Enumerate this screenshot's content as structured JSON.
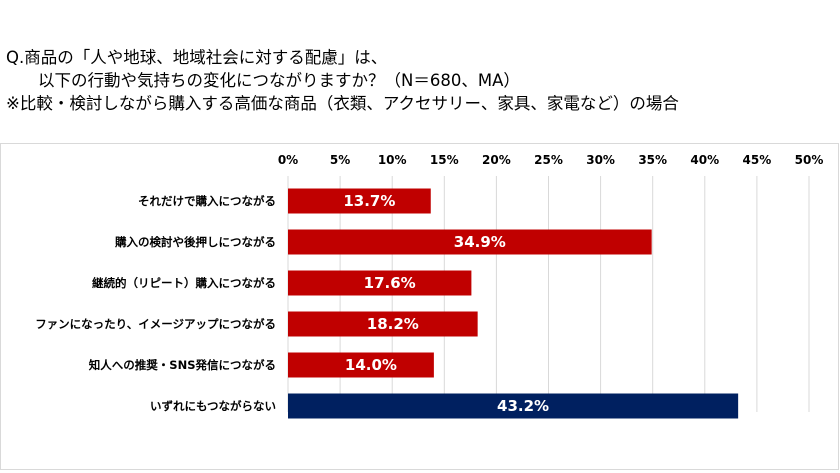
{
  "header": {
    "line1": "Q.商品の「人や地球、地域社会に対する配慮」は、",
    "line2": "以下の行動や気持ちの変化につながりますか？（N＝680、MA）",
    "line3": "※比較・検討しながら購入する高価な商品（衣類、アクセサリー、家具、家電など）の場合"
  },
  "colors": {
    "red": "#C00000",
    "navy": "#002060"
  },
  "chart_data": {
    "type": "bar",
    "orientation": "horizontal",
    "categories": [
      "それだけで購入につながる",
      "購入の検討や後押しにつながる",
      "継続的（リピート）購入につながる",
      "ファンになったり、イメージアップにつながる",
      "知人への推奨・SNS発信につながる",
      "いずれにもつながらない"
    ],
    "values": [
      13.7,
      34.9,
      17.6,
      18.2,
      14.0,
      43.2
    ],
    "data_labels": [
      "13.7%",
      "34.9%",
      "17.6%",
      "18.2%",
      "14.0%",
      "43.2%"
    ],
    "bar_colors": [
      "#C00000",
      "#C00000",
      "#C00000",
      "#C00000",
      "#C00000",
      "#002060"
    ],
    "xlim": [
      0,
      50
    ],
    "xticks": [
      0,
      5,
      10,
      15,
      20,
      25,
      30,
      35,
      40,
      45,
      50
    ],
    "xtick_labels": [
      "0%",
      "5%",
      "10%",
      "15%",
      "20%",
      "25%",
      "30%",
      "35%",
      "40%",
      "45%",
      "50%"
    ],
    "axis_position": "top",
    "grid": true,
    "legend": "none"
  }
}
